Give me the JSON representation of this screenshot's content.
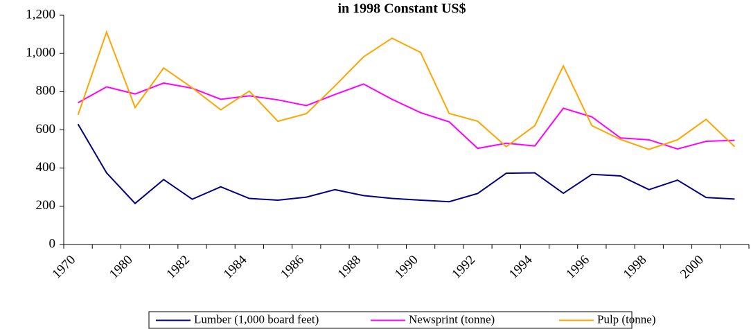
{
  "chart_data": {
    "type": "line",
    "title": "in 1998 Constant US$",
    "categories": [
      "1970",
      null,
      "1980",
      null,
      "1982",
      null,
      "1984",
      null,
      "1986",
      null,
      "1988",
      null,
      "1990",
      null,
      "1992",
      null,
      "1994",
      null,
      "1996",
      null,
      "1998",
      null,
      "2000",
      null
    ],
    "series": [
      {
        "name": "Lumber (1,000 board feet)",
        "color": "#000080",
        "values": [
          630,
          375,
          215,
          340,
          237,
          302,
          241,
          232,
          248,
          287,
          256,
          241,
          232,
          224,
          267,
          373,
          375,
          268,
          367,
          359,
          287,
          337,
          246,
          238
        ]
      },
      {
        "name": "Newsprint (tonne)",
        "color": "#ff00ff",
        "values": [
          742,
          825,
          788,
          845,
          818,
          760,
          778,
          757,
          727,
          785,
          840,
          760,
          690,
          642,
          503,
          530,
          516,
          713,
          668,
          558,
          548,
          500,
          540,
          545
        ]
      },
      {
        "name": "Pulp (tonne)",
        "color": "#ffa500",
        "values": [
          678,
          1112,
          717,
          924,
          820,
          705,
          803,
          645,
          685,
          830,
          982,
          1080,
          1005,
          686,
          645,
          512,
          622,
          935,
          622,
          550,
          498,
          548,
          655,
          512
        ]
      }
    ],
    "ylim": [
      0,
      1200
    ],
    "yticks": [
      0,
      200,
      400,
      600,
      800,
      {
        "value": 1000,
        "label": "1,000"
      },
      {
        "value": 1200,
        "label": "1,200"
      }
    ],
    "grid": false,
    "legend": "bottom"
  }
}
